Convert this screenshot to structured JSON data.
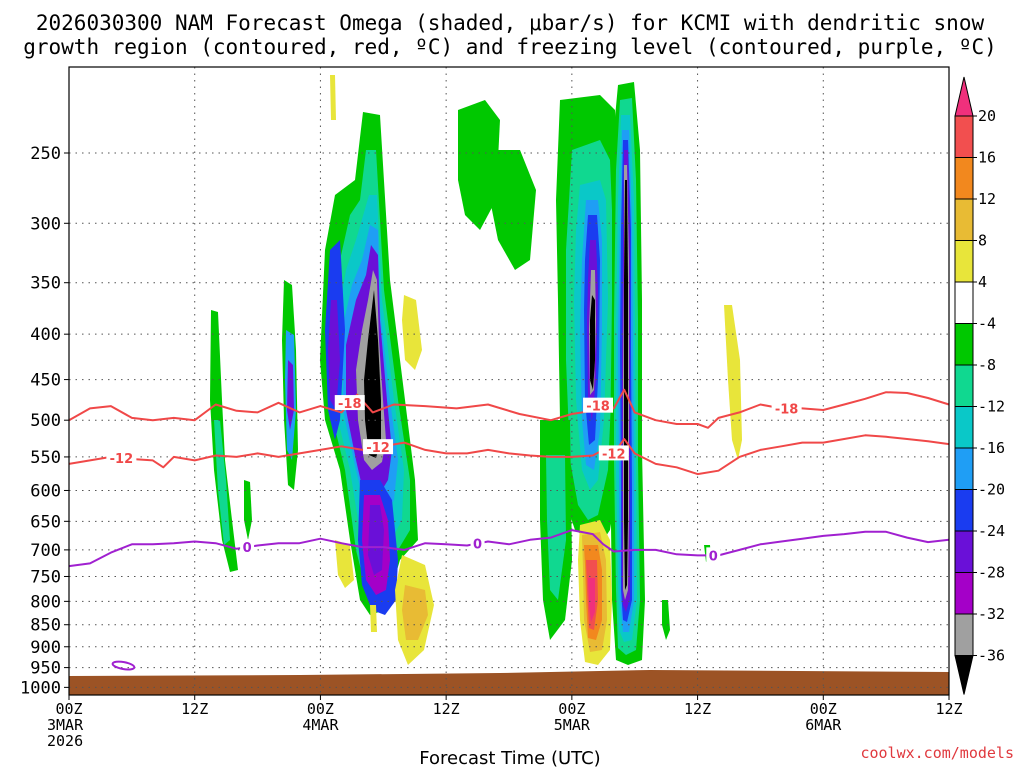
{
  "title": {
    "line1": "2026030300 NAM Forecast Omega (shaded, μbar/s) for KCMI with dendritic snow",
    "line2": "growth region (contoured, red, ºC) and freezing level (contoured, purple, ºC)"
  },
  "credit": "coolwx.com/models",
  "chart_data": {
    "type": "time-height cross section (shaded omega with contours)",
    "title": "2026030300 NAM Forecast Omega (shaded, μbar/s) for KCMI with dendritic snow growth region (contoured, red, ºC) and freezing level (contoured, purple, ºC)",
    "xlabel": "Forecast Time (UTC)",
    "ylabel": "",
    "x_hours_range": [
      0,
      84
    ],
    "y_pressure_range_hPa": [
      200,
      1020
    ],
    "x_ticks": [
      {
        "hour": 0,
        "lines": [
          "00Z",
          "3MAR",
          "2026"
        ]
      },
      {
        "hour": 12,
        "lines": [
          "12Z"
        ]
      },
      {
        "hour": 24,
        "lines": [
          "00Z",
          "4MAR"
        ]
      },
      {
        "hour": 36,
        "lines": [
          "12Z"
        ]
      },
      {
        "hour": 48,
        "lines": [
          "00Z",
          "5MAR"
        ]
      },
      {
        "hour": 60,
        "lines": [
          "12Z"
        ]
      },
      {
        "hour": 72,
        "lines": [
          "00Z",
          "6MAR"
        ]
      },
      {
        "hour": 84,
        "lines": [
          "12Z"
        ]
      }
    ],
    "y_ticks": [
      250,
      300,
      350,
      400,
      450,
      500,
      550,
      600,
      650,
      700,
      750,
      800,
      850,
      900,
      950,
      1000
    ],
    "colorbar": {
      "labels": [
        "20",
        "16",
        "12",
        "8",
        "4",
        "-4",
        "-8",
        "-12",
        "-16",
        "-20",
        "-24",
        "-28",
        "-32",
        "-36"
      ],
      "colors": [
        "#f0307c",
        "#f24f4f",
        "#f2881e",
        "#e8bb34",
        "#e8e53a",
        "#ffffff",
        "#00c800",
        "#10d890",
        "#0ac8c8",
        "#1f9ef5",
        "#1a3cf0",
        "#6a10d8",
        "#a400c8",
        "#a0a0a0",
        "#000000"
      ]
    },
    "contours": [
      {
        "name": "-18C isotherm",
        "color": "#f04848",
        "label": "-18",
        "label_hours": [
          26.8,
          50.5,
          68.5
        ],
        "x_hours": [
          0,
          2,
          4,
          6,
          8,
          10,
          12,
          14,
          16,
          18,
          20,
          22,
          24,
          26,
          27.5,
          29,
          31,
          34,
          37,
          40,
          43,
          46,
          48,
          50,
          51,
          52,
          53,
          54,
          56,
          58,
          60,
          61,
          62,
          64,
          66,
          68,
          70,
          72,
          74,
          76,
          78,
          80,
          82,
          84
        ],
        "pressure_hPa": [
          500,
          485,
          482,
          497,
          500,
          497,
          500,
          480,
          488,
          490,
          478,
          490,
          482,
          490,
          468,
          490,
          480,
          482,
          485,
          480,
          492,
          500,
          492,
          488,
          475,
          485,
          462,
          490,
          500,
          505,
          505,
          510,
          497,
          490,
          480,
          485,
          485,
          487,
          480,
          473,
          465,
          466,
          472,
          480
        ]
      },
      {
        "name": "-12C isotherm",
        "color": "#f04848",
        "label": "-12",
        "label_hours": [
          5,
          29.5,
          52
        ],
        "x_hours": [
          0,
          2,
          4,
          6,
          8,
          9,
          10,
          12,
          14,
          16,
          18,
          20,
          22,
          24,
          26,
          28,
          30,
          32,
          34,
          36,
          38,
          40,
          42,
          44,
          46,
          48,
          50,
          51,
          52,
          53,
          54,
          56,
          58,
          60,
          62,
          64,
          66,
          68,
          70,
          72,
          74,
          76,
          78,
          80,
          82,
          84
        ],
        "pressure_hPa": [
          560,
          555,
          550,
          553,
          555,
          565,
          550,
          555,
          548,
          550,
          545,
          550,
          545,
          540,
          535,
          540,
          535,
          530,
          540,
          545,
          545,
          540,
          545,
          548,
          550,
          550,
          548,
          540,
          545,
          525,
          545,
          560,
          565,
          575,
          570,
          550,
          540,
          535,
          530,
          530,
          525,
          520,
          522,
          525,
          528,
          532
        ]
      },
      {
        "name": "0C freezing level",
        "color": "#a020d0",
        "label": "0",
        "label_hours": [
          17,
          39,
          61.5
        ],
        "x_hours": [
          0,
          2,
          4,
          6,
          8,
          10,
          12,
          14,
          16,
          18,
          20,
          22,
          24,
          26,
          28,
          30,
          32,
          34,
          36,
          38,
          40,
          42,
          44,
          46,
          48,
          50,
          51,
          52,
          54,
          56,
          58,
          60,
          62,
          64,
          66,
          68,
          70,
          72,
          74,
          76,
          78,
          80,
          82,
          84
        ],
        "pressure_hPa": [
          730,
          725,
          705,
          690,
          690,
          688,
          685,
          688,
          698,
          692,
          688,
          688,
          680,
          688,
          695,
          695,
          700,
          688,
          690,
          692,
          685,
          690,
          682,
          678,
          665,
          672,
          690,
          703,
          700,
          700,
          708,
          710,
          710,
          700,
          690,
          685,
          680,
          675,
          672,
          668,
          668,
          678,
          686,
          682
        ]
      }
    ],
    "omega_regions": [
      {
        "label": "upward motion -4 to -36 (green through black core)",
        "center_hour": 29.5,
        "pressure_range_hPa": [
          230,
          900
        ]
      },
      {
        "label": "upward motion -4 to -36 (green through black core)",
        "center_hour": 51.5,
        "pressure_range_hPa": [
          210,
          960
        ]
      },
      {
        "label": "downward motion +4 to +20 (yellow through magenta)",
        "center_hour": 50.5,
        "pressure_range_hPa": [
          720,
          960
        ]
      },
      {
        "label": "downward motion +4 to +8",
        "center_hour": 33.5,
        "pressure_range_hPa": [
          740,
          960
        ]
      }
    ]
  }
}
